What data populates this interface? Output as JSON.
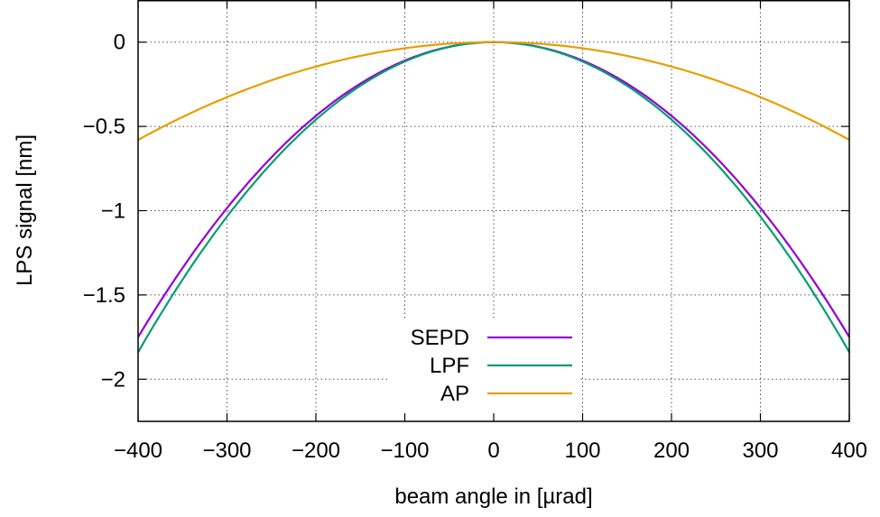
{
  "chart_data": {
    "type": "line",
    "title": "",
    "xlabel": "beam angle in [µrad]",
    "ylabel": "LPS signal [nm]",
    "xlim": [
      -400,
      400
    ],
    "ylim": [
      -2.25,
      0.25
    ],
    "x_ticks": [
      -400,
      -300,
      -200,
      -100,
      0,
      100,
      200,
      300,
      400
    ],
    "x_tick_labels": [
      "−400",
      "−300",
      "−200",
      "−100",
      "0",
      "100",
      "200",
      "300",
      "400"
    ],
    "y_ticks": [
      0,
      -0.5,
      -1,
      -1.5,
      -2
    ],
    "y_tick_labels": [
      "0",
      "−0.5",
      "−1",
      "−1.5",
      "−2"
    ],
    "grid": true,
    "legend_position": "bottom-center",
    "x": [
      -400,
      -350,
      -300,
      -250,
      -200,
      -150,
      -100,
      -50,
      0,
      50,
      100,
      150,
      200,
      250,
      300,
      350,
      400
    ],
    "series": [
      {
        "name": "SEPD",
        "color": "#9400d3",
        "values": [
          -1.75,
          -1.34,
          -0.985,
          -0.684,
          -0.438,
          -0.246,
          -0.109,
          -0.027,
          0,
          -0.027,
          -0.109,
          -0.246,
          -0.438,
          -0.684,
          -0.985,
          -1.34,
          -1.75
        ]
      },
      {
        "name": "LPF",
        "color": "#009e73",
        "values": [
          -1.84,
          -1.41,
          -1.035,
          -0.719,
          -0.46,
          -0.259,
          -0.115,
          -0.029,
          0,
          -0.029,
          -0.115,
          -0.259,
          -0.46,
          -0.719,
          -1.035,
          -1.41,
          -1.84
        ]
      },
      {
        "name": "AP",
        "color": "#e69f00",
        "values": [
          -0.58,
          -0.444,
          -0.326,
          -0.227,
          -0.145,
          -0.082,
          -0.036,
          -0.009,
          0,
          -0.009,
          -0.036,
          -0.082,
          -0.145,
          -0.227,
          -0.326,
          -0.444,
          -0.58
        ]
      }
    ]
  }
}
